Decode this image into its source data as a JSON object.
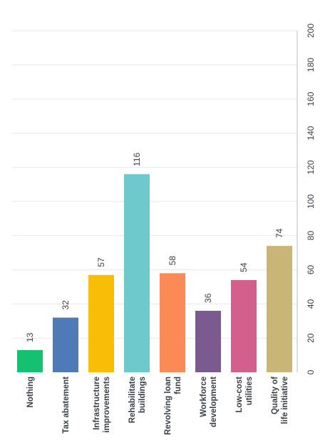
{
  "chart_data": {
    "type": "bar",
    "orientation": "vertical-rotated",
    "categories": [
      [
        "Nothing"
      ],
      [
        "Tax abatement"
      ],
      [
        "Infrastructure",
        "improvements"
      ],
      [
        "Rehabilitate",
        "buildings"
      ],
      [
        "Revolving loan",
        "fund"
      ],
      [
        "Workforce",
        "development"
      ],
      [
        "Low-cost",
        "utilities"
      ],
      [
        "Quality of",
        "life initiative"
      ]
    ],
    "values": [
      13,
      32,
      57,
      116,
      58,
      36,
      54,
      74
    ],
    "value_labels": [
      "13",
      "32",
      "57",
      "116",
      "58",
      "36",
      "54",
      "74"
    ],
    "colors": [
      "#14c16f",
      "#4f7ab7",
      "#f9bd08",
      "#6ec9cc",
      "#fb8a56",
      "#7b5a8f",
      "#d35f8d",
      "#c9b677"
    ],
    "yticks": [
      0,
      20,
      40,
      60,
      80,
      100,
      120,
      140,
      160,
      180,
      200
    ],
    "ylim": [
      0,
      200
    ],
    "grid": true,
    "title": "",
    "xlabel": "",
    "ylabel": ""
  }
}
